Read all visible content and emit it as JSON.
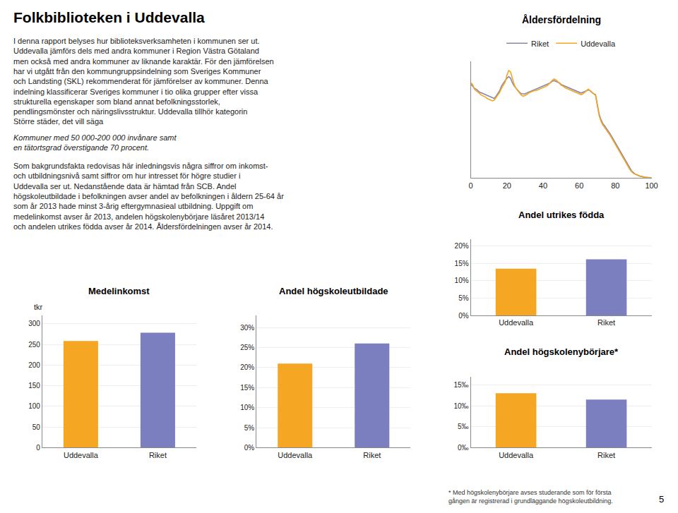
{
  "title": "Folkbiblioteken i Uddevalla",
  "annotations": [
    "I denna rapport belyses hur biblioteksverksamheten i kommunen ser ut.\nUddevalla jämförs dels med andra kommuner i Region Västra Götaland\nmen också med andra kommuner av liknande karaktär. För den jämförelsen\nhar vi utgått från den kommungruppsindelning som Sveriges Kommuner\noch Landsting (SKL) rekommenderat för jämförelser av kommuner. Denna\nindelning klassificerar Sveriges kommuner i tio olika grupper efter vissa\nstrukturella egenskaper som bland annat befolkningsstorlek,\npendlingsmönster och näringslivsstruktur. Uddevalla tillhör kategorin\nStörre städer, det vill säga ",
    "Kommuner med 50 000-200 000 invånare samt\nen tätortsgrad överstigande 70 procent.",
    "Som bakgrundsfakta redovisas här inledningsvis några siffror om inkomst-\noch utbildningsnivå samt siffror om hur intresset för högre studier i\nUddevalla ser ut. Nedanstående data är hämtad från SCB. Andel\nhögskoleutbildade i befolkningen avser andel av befolkningen i åldern 25-64 år\nsom år 2013 hade minst 3-årig eftergymnasieal utbildning. Uppgift om\nmedelinkomst avser år 2013, andelen högskolenybörjare läsåret 2013/14\noch andelen utrikes födda avser år 2014. Åldersfördelningen avser år 2014.",
    "5"
  ],
  "chart_data": [
    {
      "type": "line",
      "title": "Åldersfördelning",
      "x": [
        0,
        1,
        2,
        3,
        4,
        5,
        6,
        7,
        8,
        9,
        10,
        11,
        12,
        13,
        14,
        15,
        16,
        17,
        18,
        19,
        20,
        21,
        22,
        23,
        24,
        25,
        26,
        27,
        28,
        29,
        30,
        31,
        32,
        33,
        34,
        35,
        36,
        37,
        38,
        39,
        40,
        41,
        42,
        43,
        44,
        45,
        46,
        47,
        48,
        49,
        50,
        51,
        52,
        53,
        54,
        55,
        56,
        57,
        58,
        59,
        60,
        61,
        62,
        63,
        64,
        65,
        66,
        67,
        68,
        69,
        70,
        71,
        72,
        73,
        74,
        75,
        76,
        77,
        78,
        79,
        80,
        81,
        82,
        83,
        84,
        85,
        86,
        87,
        88,
        89,
        90,
        91,
        92,
        93,
        94,
        95,
        96,
        97,
        98,
        99,
        100
      ],
      "series": [
        {
          "name": "Riket",
          "color": "#8888aa",
          "values": [
            1.2,
            1.18,
            1.15,
            1.14,
            1.12,
            1.1,
            1.09,
            1.08,
            1.07,
            1.06,
            1.05,
            1.04,
            1.03,
            1.02,
            1.05,
            1.08,
            1.12,
            1.18,
            1.22,
            1.25,
            1.28,
            1.3,
            1.28,
            1.22,
            1.18,
            1.15,
            1.12,
            1.1,
            1.08,
            1.08,
            1.08,
            1.09,
            1.1,
            1.11,
            1.12,
            1.13,
            1.14,
            1.15,
            1.16,
            1.17,
            1.18,
            1.19,
            1.2,
            1.21,
            1.22,
            1.24,
            1.25,
            1.24,
            1.23,
            1.22,
            1.2,
            1.19,
            1.18,
            1.17,
            1.16,
            1.15,
            1.14,
            1.13,
            1.12,
            1.11,
            1.1,
            1.09,
            1.1,
            1.11,
            1.12,
            1.13,
            1.12,
            1.1,
            1.08,
            1.07,
            0.95,
            0.82,
            0.75,
            0.7,
            0.67,
            0.64,
            0.61,
            0.57,
            0.53,
            0.49,
            0.44,
            0.4,
            0.36,
            0.32,
            0.28,
            0.24,
            0.2,
            0.16,
            0.12,
            0.09,
            0.07,
            0.05,
            0.04,
            0.03,
            0.02,
            0.02,
            0.01,
            0.01,
            0.01,
            0.005,
            0.003
          ]
        },
        {
          "name": "Uddevalla",
          "color": "#F5A623",
          "values": [
            1.22,
            1.2,
            1.14,
            1.12,
            1.1,
            1.08,
            1.06,
            1.05,
            1.04,
            1.02,
            1.01,
            1.0,
            0.99,
            1.0,
            1.03,
            1.06,
            1.1,
            1.15,
            1.19,
            1.23,
            1.32,
            1.38,
            1.36,
            1.28,
            1.2,
            1.15,
            1.12,
            1.1,
            1.06,
            1.05,
            1.06,
            1.07,
            1.09,
            1.1,
            1.11,
            1.12,
            1.12,
            1.13,
            1.14,
            1.15,
            1.16,
            1.17,
            1.18,
            1.2,
            1.23,
            1.25,
            1.27,
            1.26,
            1.24,
            1.21,
            1.19,
            1.18,
            1.16,
            1.15,
            1.14,
            1.13,
            1.12,
            1.11,
            1.1,
            1.09,
            1.08,
            1.07,
            1.08,
            1.1,
            1.12,
            1.14,
            1.12,
            1.1,
            1.08,
            1.06,
            0.93,
            0.8,
            0.73,
            0.68,
            0.65,
            0.62,
            0.59,
            0.55,
            0.51,
            0.47,
            0.42,
            0.38,
            0.34,
            0.3,
            0.27,
            0.23,
            0.19,
            0.15,
            0.11,
            0.08,
            0.06,
            0.05,
            0.04,
            0.03,
            0.02,
            0.015,
            0.01,
            0.008,
            0.005,
            0.003,
            0.002
          ]
        }
      ],
      "xlim": [
        0,
        100
      ],
      "xticks": [
        0,
        20,
        40,
        60,
        80,
        100
      ],
      "ylim": [
        0,
        1.5
      ],
      "tick_labels": "x",
      "grid": false,
      "legend": "upper center"
    },
    {
      "type": "bar",
      "title": "Andel utrikes födda",
      "categories": [
        "Uddevalla",
        "Riket"
      ],
      "values": [
        13.5,
        16.2
      ],
      "colors": [
        "#F5A623",
        "#7B7FBF"
      ],
      "ylim": [
        0,
        22
      ],
      "yticks": [
        {
          "value": 0,
          "label": "0%"
        },
        {
          "value": 5,
          "label": "5%"
        },
        {
          "value": 10,
          "label": "10%"
        },
        {
          "value": 15,
          "label": "15%"
        },
        {
          "value": 20,
          "label": "20%"
        }
      ],
      "grid": true
    },
    {
      "type": "bar",
      "title": "Andel högskolenybörjare*",
      "categories": [
        "Uddevalla",
        "Riket"
      ],
      "values": [
        13.0,
        11.5
      ],
      "colors": [
        "#F5A623",
        "#7B7FBF"
      ],
      "ylim": [
        0,
        17
      ],
      "yticks": [
        {
          "value": 0,
          "label": "0‰"
        },
        {
          "value": 5,
          "label": "5‰"
        },
        {
          "value": 10,
          "label": "10‰"
        },
        {
          "value": 15,
          "label": "15‰"
        }
      ],
      "grid": true,
      "annotations": [
        "* Med högskolenybörjare avses studerande som för första\ngången är registrerad i grundläggande högskoleutbildning."
      ]
    },
    {
      "type": "bar",
      "title": "Medelinkomst",
      "ylabel": "tkr",
      "categories": [
        "Uddevalla",
        "Riket"
      ],
      "values": [
        258,
        278
      ],
      "colors": [
        "#F5A623",
        "#7B7FBF"
      ],
      "ylim": [
        0,
        320
      ],
      "yticks": [
        0,
        50,
        100,
        150,
        200,
        250,
        300
      ],
      "grid": true
    },
    {
      "type": "bar",
      "title": "Andel högskoleutbildade",
      "categories": [
        "Uddevalla",
        "Riket"
      ],
      "values": [
        21.0,
        26.0
      ],
      "colors": [
        "#F5A623",
        "#7B7FBF"
      ],
      "ylim": [
        0,
        33
      ],
      "yticks": [
        {
          "value": 0,
          "label": "0%"
        },
        {
          "value": 5,
          "label": "5%"
        },
        {
          "value": 10,
          "label": "10%"
        },
        {
          "value": 15,
          "label": "15%"
        },
        {
          "value": 20,
          "label": "20%"
        },
        {
          "value": 25,
          "label": "25%"
        },
        {
          "value": 30,
          "label": "30%"
        }
      ],
      "grid": true
    }
  ]
}
